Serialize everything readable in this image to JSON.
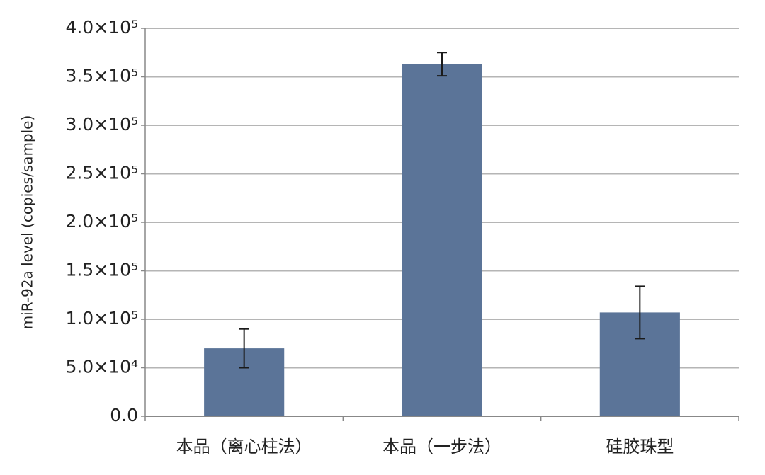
{
  "chart_data": {
    "type": "bar",
    "y_label": "miR-92a level (copies/sample)",
    "categories": [
      "本品（离心柱法）",
      "本品（一步法）",
      "硅胶珠型"
    ],
    "values": [
      70000,
      363000,
      107000
    ],
    "errors": [
      20000,
      12000,
      27000
    ],
    "color": "#5b7498",
    "ylim": [
      0,
      400000
    ],
    "yticks": [
      {
        "value": 0,
        "label": "0.0"
      },
      {
        "value": 50000,
        "label": "5.0×10⁴"
      },
      {
        "value": 100000,
        "label": "1.0×10⁵"
      },
      {
        "value": 150000,
        "label": "1.5×10⁵"
      },
      {
        "value": 200000,
        "label": "2.0×10⁵"
      },
      {
        "value": 250000,
        "label": "2.5×10⁵"
      },
      {
        "value": 300000,
        "label": "3.0×10⁵"
      },
      {
        "value": 350000,
        "label": "3.5×10⁵"
      },
      {
        "value": 400000,
        "label": "4.0×10⁵"
      }
    ],
    "grid": true
  }
}
